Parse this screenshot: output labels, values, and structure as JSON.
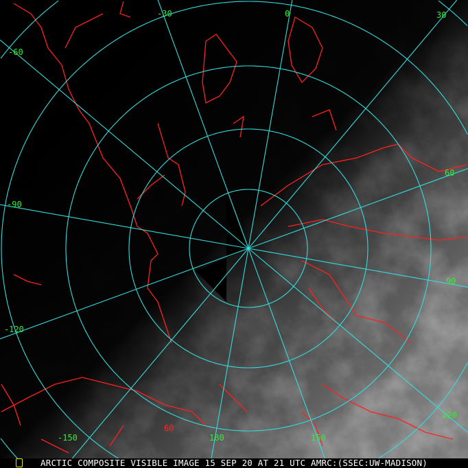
{
  "image": {
    "caption": "ARCTIC COMPOSITE VISIBLE IMAGE 15 SEP 20 AT 21 UTC AMRC:(SSEC:UW-MADISON)",
    "colors": {
      "graticule": "#33dddd",
      "coastline": "#ff2020",
      "longitude_labels": "#33ee33",
      "latitude_labels": "#ff2020",
      "caption": "#ffffff"
    },
    "projection": "polar stereographic (north pole)",
    "longitude_labels": [
      "-30",
      "0",
      "30",
      "-60",
      "60",
      "-90",
      "90",
      "-120",
      "120",
      "-150",
      "180",
      "150"
    ],
    "latitude_labels": [
      "60"
    ]
  }
}
